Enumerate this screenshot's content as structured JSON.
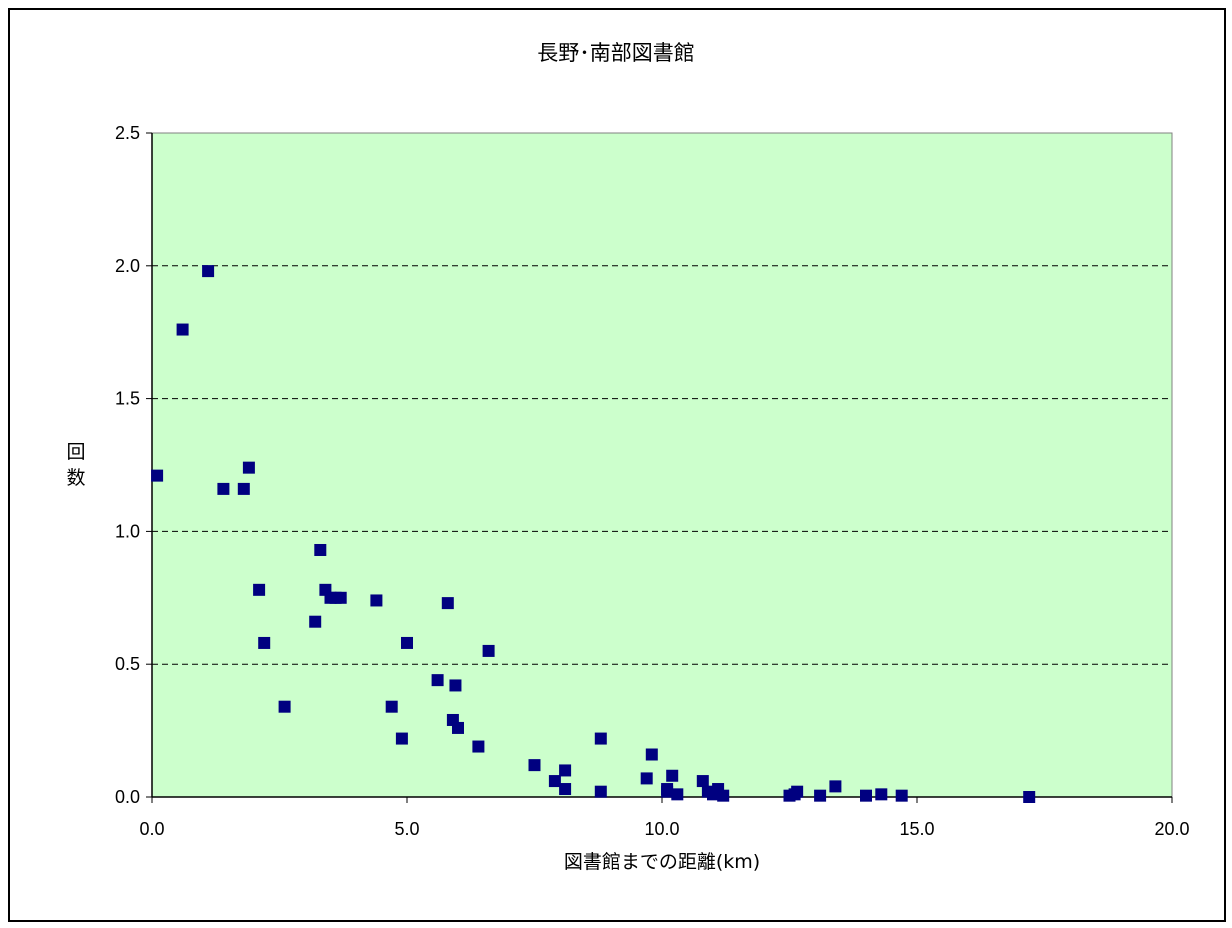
{
  "chart_data": {
    "type": "scatter",
    "title": "長野･南部図書館",
    "xlabel": "図書館までの距離(km)",
    "ylabel": "回数",
    "xlim": [
      0,
      20
    ],
    "ylim": [
      0,
      2.5
    ],
    "xticks": [
      "0.0",
      "5.0",
      "10.0",
      "15.0",
      "20.0"
    ],
    "yticks": [
      "0.0",
      "0.5",
      "1.0",
      "1.5",
      "2.0",
      "2.5"
    ],
    "grid": "horizontal dashed",
    "plot_background": "#ccffcc",
    "marker_color": "#000080",
    "marker": "square",
    "points": [
      [
        0.1,
        1.21
      ],
      [
        0.6,
        1.76
      ],
      [
        1.1,
        1.98
      ],
      [
        1.4,
        1.16
      ],
      [
        1.8,
        1.16
      ],
      [
        1.9,
        1.24
      ],
      [
        2.1,
        0.78
      ],
      [
        2.2,
        0.58
      ],
      [
        2.6,
        0.34
      ],
      [
        3.2,
        0.66
      ],
      [
        3.3,
        0.93
      ],
      [
        3.4,
        0.78
      ],
      [
        3.5,
        0.75
      ],
      [
        3.6,
        0.75
      ],
      [
        3.7,
        0.75
      ],
      [
        4.4,
        0.74
      ],
      [
        4.7,
        0.34
      ],
      [
        4.9,
        0.22
      ],
      [
        5.0,
        0.58
      ],
      [
        5.6,
        0.44
      ],
      [
        5.8,
        0.73
      ],
      [
        5.9,
        0.29
      ],
      [
        6.0,
        0.26
      ],
      [
        5.95,
        0.42
      ],
      [
        6.4,
        0.19
      ],
      [
        6.6,
        0.55
      ],
      [
        7.5,
        0.12
      ],
      [
        7.9,
        0.06
      ],
      [
        8.1,
        0.1
      ],
      [
        8.1,
        0.03
      ],
      [
        8.8,
        0.22
      ],
      [
        8.8,
        0.02
      ],
      [
        9.7,
        0.07
      ],
      [
        9.8,
        0.16
      ],
      [
        10.1,
        0.03
      ],
      [
        10.2,
        0.08
      ],
      [
        10.3,
        0.01
      ],
      [
        10.1,
        0.02
      ],
      [
        10.8,
        0.06
      ],
      [
        10.9,
        0.02
      ],
      [
        11.0,
        0.01
      ],
      [
        11.1,
        0.03
      ],
      [
        11.2,
        0.005
      ],
      [
        12.5,
        0.005
      ],
      [
        12.6,
        0.01
      ],
      [
        12.65,
        0.02
      ],
      [
        13.1,
        0.005
      ],
      [
        13.4,
        0.04
      ],
      [
        14.0,
        0.005
      ],
      [
        14.3,
        0.01
      ],
      [
        14.7,
        0.005
      ],
      [
        17.2,
        0.0
      ]
    ]
  }
}
